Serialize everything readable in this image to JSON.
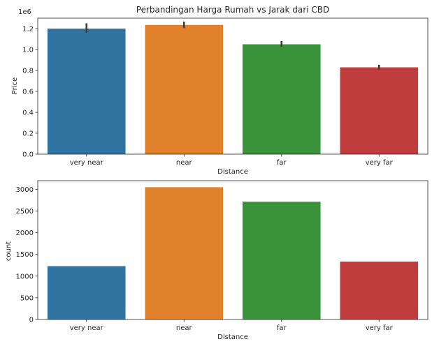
{
  "chart_data": [
    {
      "type": "bar",
      "title": "Perbandingan Harga Rumah vs Jarak dari CBD",
      "xlabel": "Distance",
      "ylabel": "Price",
      "offset_text": "1e6",
      "categories": [
        "very near",
        "near",
        "far",
        "very far"
      ],
      "values": [
        1.2,
        1.235,
        1.05,
        0.83
      ],
      "error_low": [
        1.16,
        1.205,
        1.025,
        0.81
      ],
      "error_high": [
        1.25,
        1.265,
        1.08,
        0.855
      ],
      "ylim": [
        0,
        1.3
      ],
      "yticks": [
        0.0,
        0.2,
        0.4,
        0.6,
        0.8,
        1.0,
        1.2
      ],
      "ytick_labels": [
        "0.0",
        "0.2",
        "0.4",
        "0.6",
        "0.8",
        "1.0",
        "1.2"
      ],
      "colors": [
        "#3274a1",
        "#e1812c",
        "#3a923a",
        "#c03d3e"
      ]
    },
    {
      "type": "bar",
      "title": "",
      "xlabel": "Distance",
      "ylabel": "count",
      "categories": [
        "very near",
        "near",
        "far",
        "very far"
      ],
      "values": [
        1230,
        3050,
        2715,
        1335
      ],
      "ylim": [
        0,
        3200
      ],
      "yticks": [
        0,
        500,
        1000,
        1500,
        2000,
        2500,
        3000
      ],
      "ytick_labels": [
        "0",
        "500",
        "1000",
        "1500",
        "2000",
        "2500",
        "3000"
      ],
      "colors": [
        "#3274a1",
        "#e1812c",
        "#3a923a",
        "#c03d3e"
      ]
    }
  ]
}
